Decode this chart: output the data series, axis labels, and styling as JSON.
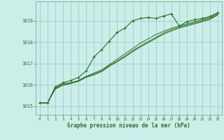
{
  "background_color": "#cceee8",
  "plot_bg_color": "#cceee8",
  "grid_color": "#99cccc",
  "line_color": "#2d6e2d",
  "xlabel": "Graphe pression niveau de la mer (hPa)",
  "ylim": [
    1014.6,
    1019.9
  ],
  "xlim": [
    -0.5,
    23.5
  ],
  "yticks": [
    1015,
    1016,
    1017,
    1018,
    1019
  ],
  "xticks": [
    0,
    1,
    2,
    3,
    4,
    5,
    6,
    7,
    8,
    9,
    10,
    11,
    12,
    13,
    14,
    15,
    16,
    17,
    18,
    19,
    20,
    21,
    22,
    23
  ],
  "series1_x": [
    0,
    1,
    2,
    3,
    4,
    5,
    6,
    7,
    8,
    9,
    10,
    11,
    12,
    13,
    14,
    15,
    16,
    17,
    18,
    19,
    20,
    21,
    22,
    23
  ],
  "series1_y": [
    1015.15,
    1015.15,
    1015.9,
    1016.1,
    1016.2,
    1016.35,
    1016.65,
    1017.3,
    1017.65,
    1018.05,
    1018.45,
    1018.65,
    1019.0,
    1019.1,
    1019.15,
    1019.1,
    1019.22,
    1019.32,
    1018.75,
    1018.95,
    1019.05,
    1019.1,
    1019.2,
    1019.38
  ],
  "series2_x": [
    0,
    1,
    2,
    3,
    4,
    5,
    6,
    7,
    8,
    9,
    10,
    11,
    12,
    13,
    14,
    15,
    16,
    17,
    18,
    19,
    20,
    21,
    22,
    23
  ],
  "series2_y": [
    1015.15,
    1015.15,
    1015.85,
    1016.05,
    1016.1,
    1016.2,
    1016.4,
    1016.55,
    1016.7,
    1016.95,
    1017.2,
    1017.45,
    1017.7,
    1017.95,
    1018.15,
    1018.35,
    1018.5,
    1018.65,
    1018.75,
    1018.85,
    1018.95,
    1019.05,
    1019.15,
    1019.35
  ],
  "series3_x": [
    0,
    1,
    2,
    3,
    4,
    5,
    6,
    7,
    8,
    9,
    10,
    11,
    12,
    13,
    14,
    15,
    16,
    17,
    18,
    19,
    20,
    21,
    22,
    23
  ],
  "series3_y": [
    1015.15,
    1015.15,
    1015.82,
    1016.0,
    1016.08,
    1016.18,
    1016.38,
    1016.5,
    1016.65,
    1016.9,
    1017.12,
    1017.35,
    1017.6,
    1017.82,
    1018.02,
    1018.22,
    1018.42,
    1018.58,
    1018.7,
    1018.8,
    1018.9,
    1019.0,
    1019.1,
    1019.3
  ],
  "series4_x": [
    0,
    1,
    2,
    3,
    4,
    5,
    6,
    7,
    8,
    9,
    10,
    11,
    12,
    13,
    14,
    15,
    16,
    17,
    18,
    19,
    20,
    21,
    22,
    23
  ],
  "series4_y": [
    1015.15,
    1015.15,
    1015.8,
    1015.98,
    1016.06,
    1016.16,
    1016.35,
    1016.47,
    1016.62,
    1016.87,
    1017.08,
    1017.3,
    1017.55,
    1017.77,
    1017.97,
    1018.17,
    1018.37,
    1018.52,
    1018.65,
    1018.75,
    1018.85,
    1018.95,
    1019.06,
    1019.27
  ]
}
